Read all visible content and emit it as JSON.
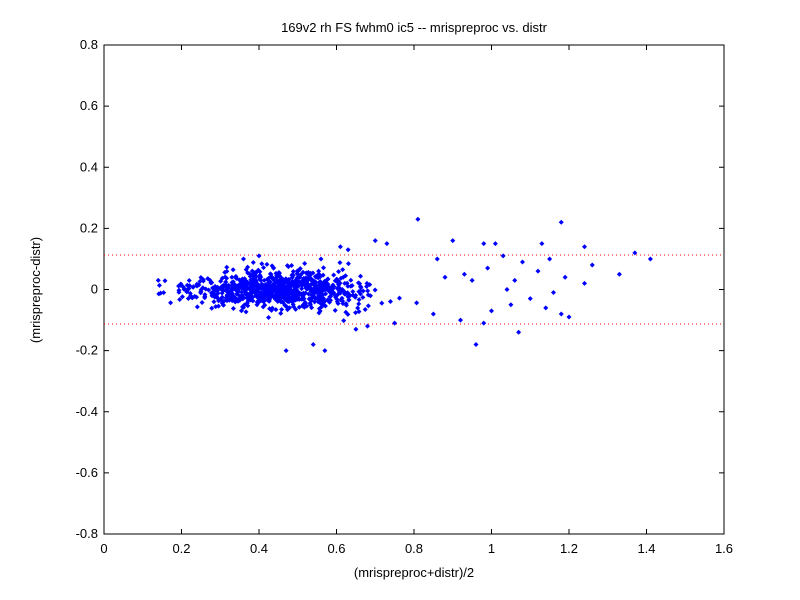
{
  "chart_data": {
    "type": "scatter",
    "title": "169v2 rh FS fwhm0 ic5 -- mrispreproc vs. distr",
    "xlabel": "(mrispreproc+distr)/2",
    "ylabel": "(mrispreproc-distr)",
    "xlim": [
      0,
      1.6
    ],
    "ylim": [
      -0.8,
      0.8
    ],
    "xticks": [
      "0",
      "0.2",
      "0.4",
      "0.6",
      "0.8",
      "1",
      "1.2",
      "1.4",
      "1.6"
    ],
    "yticks": [
      "0.8",
      "0.6",
      "0.4",
      "0.2",
      "0",
      "-0.2",
      "-0.4",
      "-0.6",
      "-0.8"
    ],
    "reference_lines": [
      0.113,
      -0.113
    ],
    "colors": {
      "points": "#0000ff",
      "reference_lines": "#ff0000"
    },
    "grid": false,
    "point_cloud": {
      "count": 900,
      "x_range": [
        0.14,
        1.41
      ],
      "dense_center": [
        0.45,
        0.0
      ],
      "y_spread": 0.05
    },
    "points": [
      [
        0.14,
        0.03
      ],
      [
        0.81,
        0.23
      ],
      [
        1.18,
        0.22
      ],
      [
        1.41,
        0.1
      ],
      [
        1.37,
        0.12
      ],
      [
        1.33,
        0.05
      ],
      [
        1.26,
        0.08
      ],
      [
        1.24,
        0.14
      ],
      [
        1.24,
        0.02
      ],
      [
        1.18,
        -0.08
      ],
      [
        1.19,
        0.04
      ],
      [
        1.2,
        -0.09
      ],
      [
        1.13,
        0.15
      ],
      [
        1.15,
        0.1
      ],
      [
        1.14,
        -0.06
      ],
      [
        1.12,
        0.06
      ],
      [
        1.07,
        -0.14
      ],
      [
        1.04,
        0.0
      ],
      [
        1.03,
        0.11
      ],
      [
        1.01,
        0.15
      ],
      [
        0.98,
        0.15
      ],
      [
        0.96,
        -0.18
      ],
      [
        0.9,
        0.16
      ],
      [
        0.7,
        0.16
      ],
      [
        0.73,
        0.15
      ],
      [
        0.61,
        0.14
      ],
      [
        0.63,
        0.13
      ],
      [
        0.57,
        -0.2
      ],
      [
        0.47,
        -0.2
      ],
      [
        0.54,
        -0.18
      ],
      [
        0.36,
        0.1
      ],
      [
        0.4,
        0.11
      ],
      [
        0.56,
        0.1
      ],
      [
        0.65,
        -0.13
      ],
      [
        0.68,
        -0.12
      ],
      [
        0.75,
        -0.11
      ],
      [
        0.85,
        -0.08
      ],
      [
        0.92,
        -0.1
      ],
      [
        0.98,
        -0.11
      ],
      [
        1.0,
        -0.07
      ],
      [
        1.05,
        -0.05
      ],
      [
        1.1,
        -0.03
      ],
      [
        0.99,
        0.07
      ],
      [
        0.95,
        0.03
      ],
      [
        0.88,
        0.04
      ],
      [
        0.86,
        0.1
      ],
      [
        0.93,
        0.05
      ],
      [
        1.06,
        0.03
      ],
      [
        1.08,
        0.09
      ],
      [
        1.16,
        -0.01
      ]
    ]
  }
}
